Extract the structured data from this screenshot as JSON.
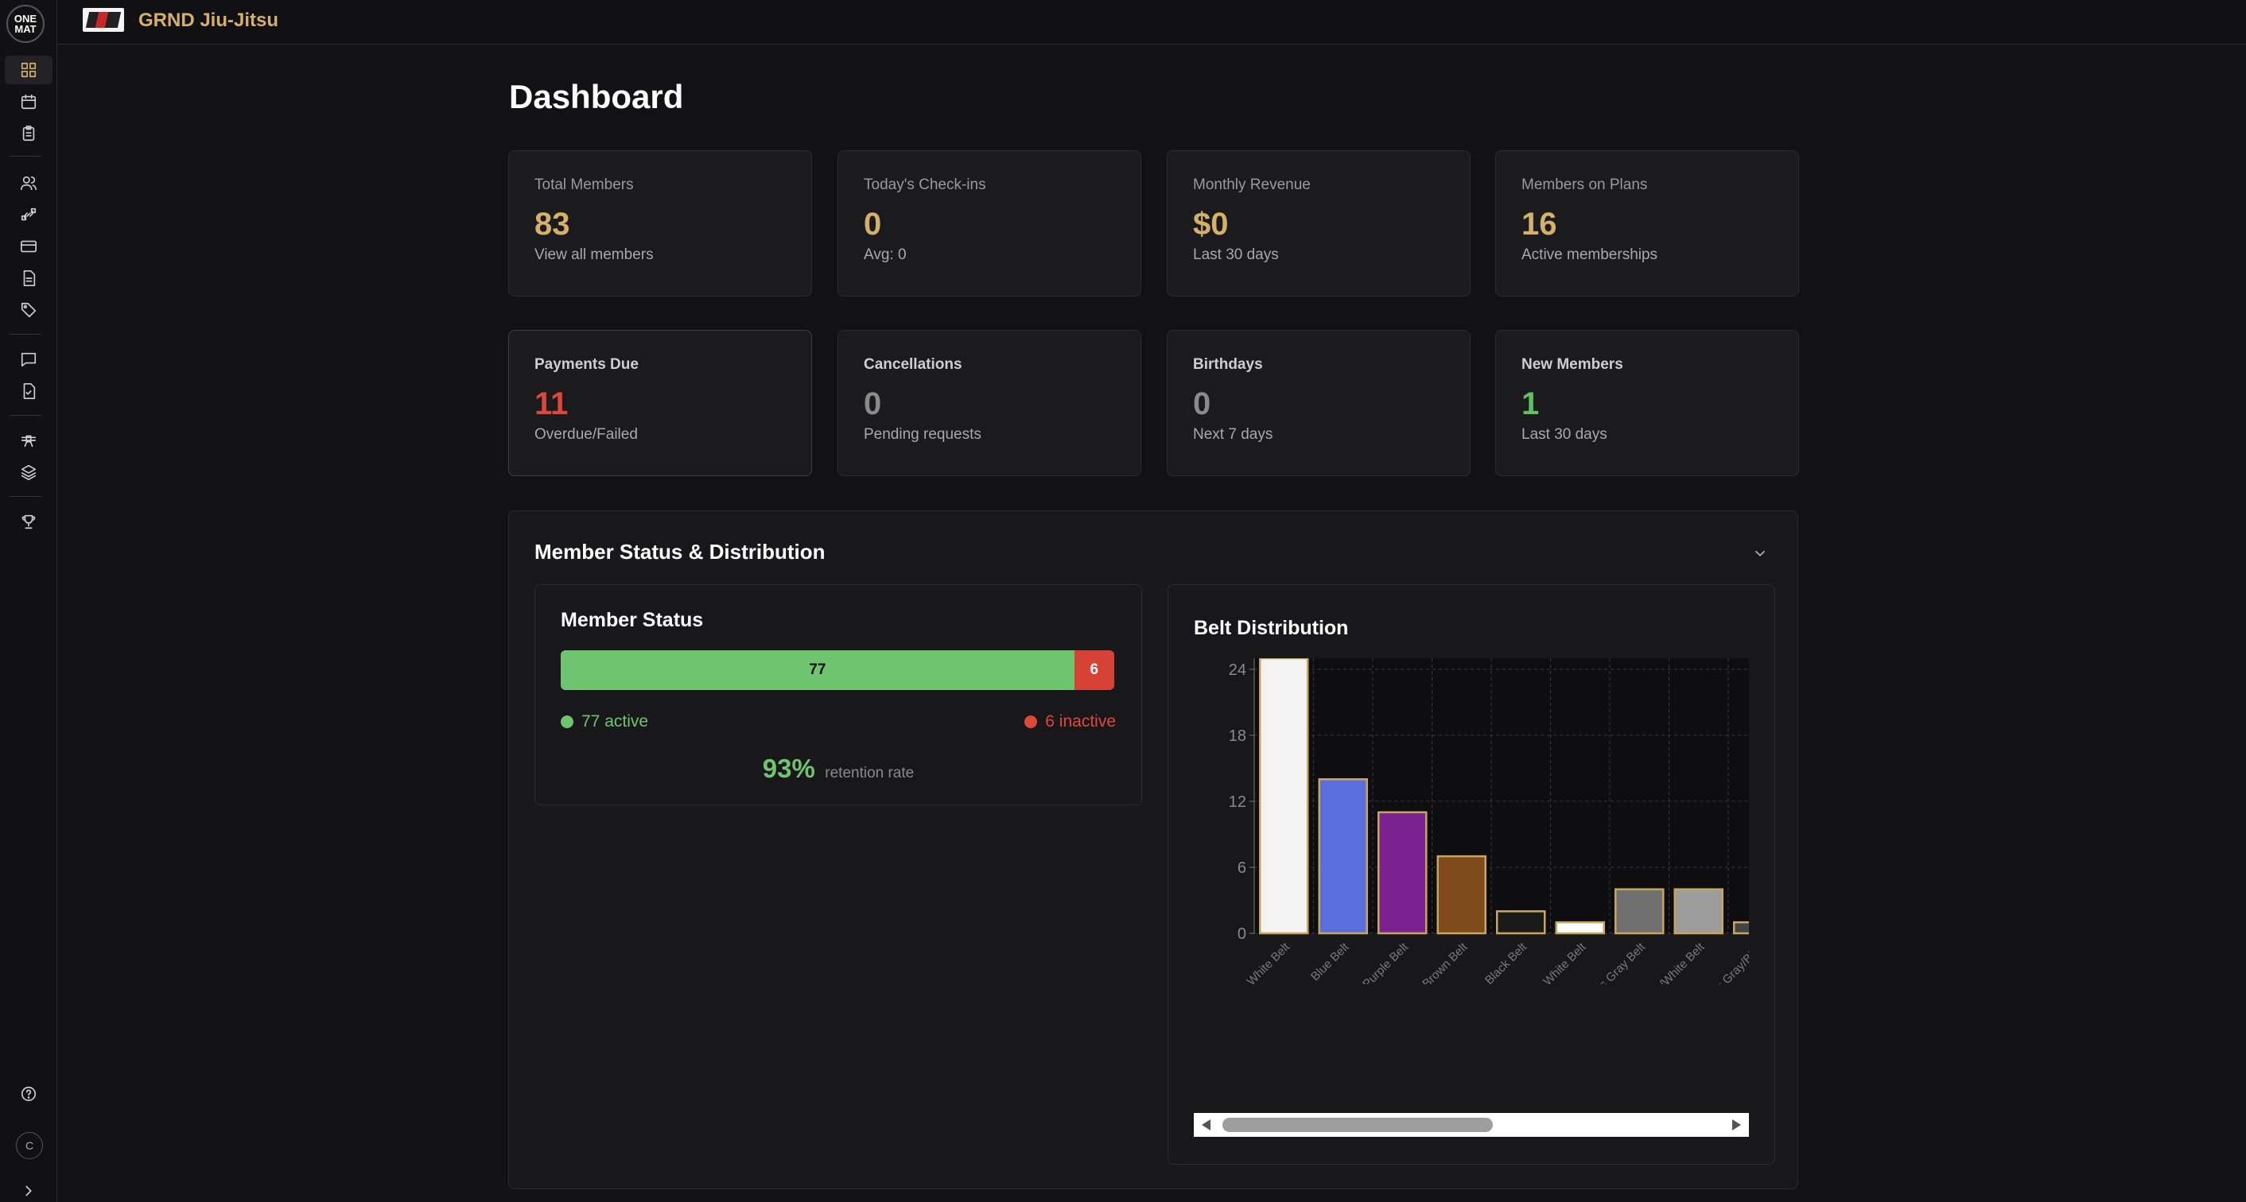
{
  "app": {
    "logo_text": "ONE MAT",
    "gym_name": "GRND Jiu-Jitsu",
    "user_initial": "C"
  },
  "sidebar": {
    "icons": [
      "dashboard-icon",
      "calendar-icon",
      "clipboard-icon",
      "users-icon",
      "link-icon",
      "credit-card-icon",
      "document-icon",
      "tag-icon",
      "message-icon",
      "file-check-icon",
      "belt-icon",
      "layers-icon",
      "trophy-icon",
      "help-icon",
      "expand-chevron-icon"
    ]
  },
  "page": {
    "title": "Dashboard"
  },
  "stats": [
    {
      "label": "Total Members",
      "value": "83",
      "sub": "View all members",
      "color": "#d4b06a"
    },
    {
      "label": "Today's Check-ins",
      "value": "0",
      "sub": "Avg: 0",
      "color": "#d4b06a"
    },
    {
      "label": "Monthly Revenue",
      "value": "$0",
      "sub": "Last 30 days",
      "color": "#d4b06a"
    },
    {
      "label": "Members on Plans",
      "value": "16",
      "sub": "Active memberships",
      "color": "#d4b06a"
    },
    {
      "label": "Payments Due",
      "value": "11",
      "sub": "Overdue/Failed",
      "color": "#e0473b"
    },
    {
      "label": "Cancellations",
      "value": "0",
      "sub": "Pending requests",
      "color": "#8a8a8a"
    },
    {
      "label": "Birthdays",
      "value": "0",
      "sub": "Next 7 days",
      "color": "#8a8a8a"
    },
    {
      "label": "New Members",
      "value": "1",
      "sub": "Last 30 days",
      "color": "#5fbf62"
    }
  ],
  "section": {
    "title": "Member Status & Distribution"
  },
  "member_status": {
    "title": "Member Status",
    "active_count": "77",
    "inactive_count": "6",
    "active_label": "77 active",
    "inactive_label": "6 inactive",
    "retention_pct": "93%",
    "retention_label": "retention rate",
    "active_color": "#6fc46f",
    "inactive_color": "#d64235"
  },
  "chart_data": {
    "type": "bar",
    "title": "Belt Distribution",
    "categories": [
      "White Belt",
      "Blue Belt",
      "Purple Belt",
      "Brown Belt",
      "Black Belt",
      "Kids White Belt",
      "Kids Gray Belt",
      "Kids Gray/White Belt",
      "Kids Gray/Black Belt"
    ],
    "tick_labels": [
      "White Belt",
      "Blue Belt",
      "Purple Belt",
      "Brown Belt",
      "Black Belt",
      "Kids White Belt",
      "Kids Gray Belt",
      "Kids Gray/White Belt",
      "Kids Gray/Blac"
    ],
    "values": [
      25,
      14,
      11,
      7,
      2,
      1,
      4,
      4,
      1
    ],
    "colors": [
      "#f3f3f3",
      "#5b6fdc",
      "#7a2291",
      "#7e4a1c",
      "#1a1a1a",
      "#ffffff",
      "#6f6f6f",
      "#9c9c9c",
      "#444444"
    ],
    "ylim": [
      0,
      25
    ],
    "yticks": [
      0,
      6,
      12,
      18,
      24
    ],
    "grid": true,
    "horizontal_scroll": true
  }
}
